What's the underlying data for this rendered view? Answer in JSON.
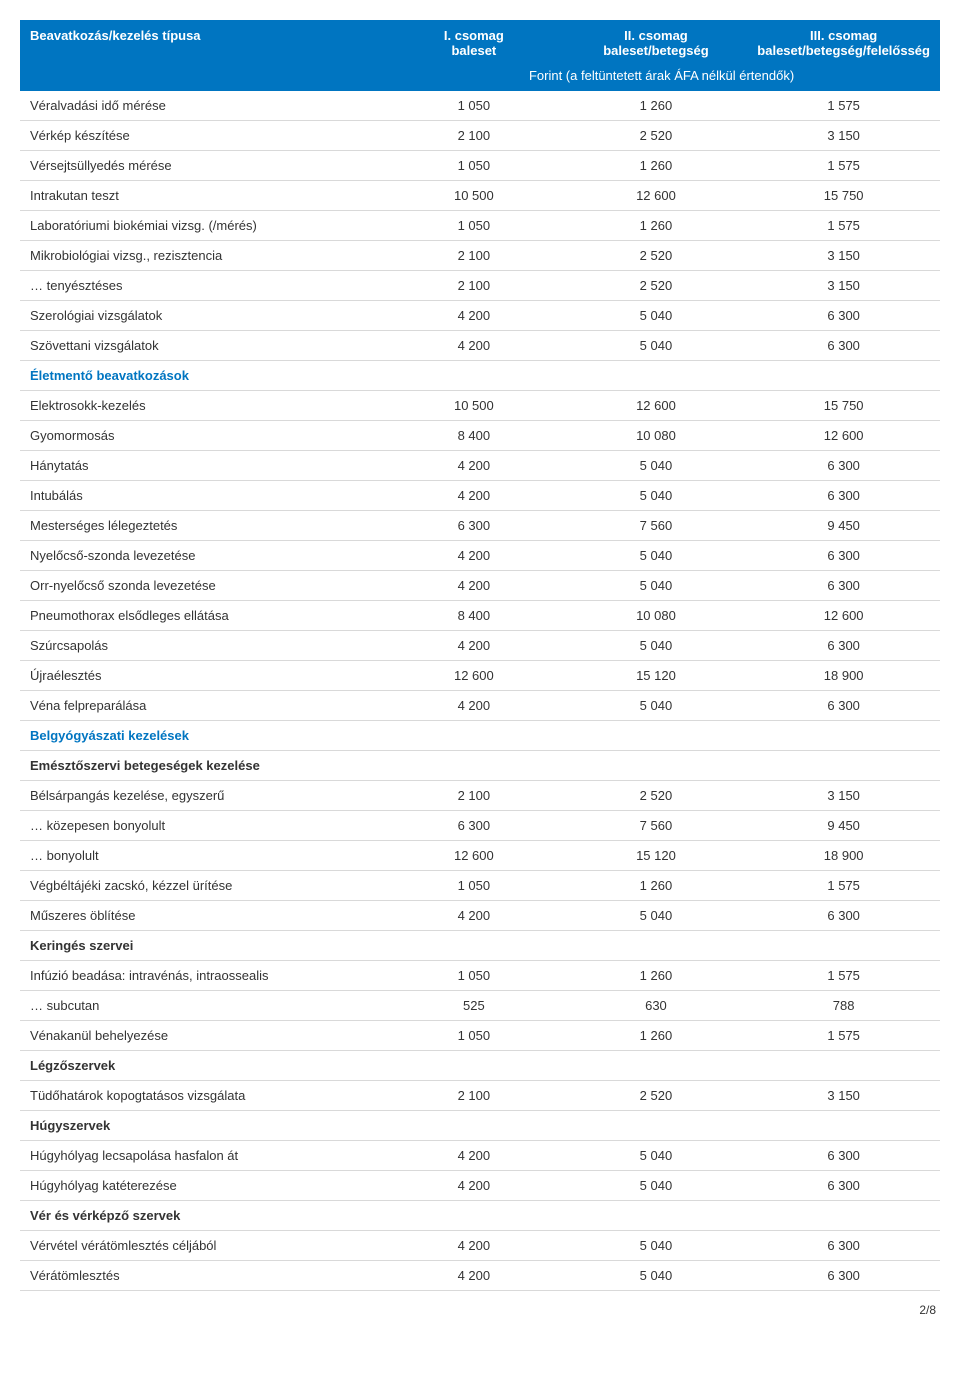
{
  "header": {
    "col0": "Beavatkozás/kezelés típusa",
    "col1_line1": "I. csomag",
    "col1_line2": "baleset",
    "col2_line1": "II. csomag",
    "col2_line2": "baleset/betegség",
    "col3_line1": "III. csomag",
    "col3_line2": "baleset/betegség/felelősség",
    "note": "Forint (a feltüntetett árak ÁFA nélkül értendők)"
  },
  "footer": "2/8",
  "colors": {
    "header_bg": "#0075c1",
    "header_fg": "#ffffff",
    "section_fg": "#0075c1",
    "text": "#333333",
    "border": "#d9d9d9",
    "page_bg": "#ffffff"
  },
  "rows": [
    {
      "type": "data",
      "label": "Véralvadási idő mérése",
      "c1": "1 050",
      "c2": "1 260",
      "c3": "1 575"
    },
    {
      "type": "data",
      "label": "Vérkép készítése",
      "c1": "2 100",
      "c2": "2 520",
      "c3": "3 150"
    },
    {
      "type": "data",
      "label": "Vérsejtsüllyedés mérése",
      "c1": "1 050",
      "c2": "1 260",
      "c3": "1 575"
    },
    {
      "type": "data",
      "label": "Intrakutan teszt",
      "c1": "10 500",
      "c2": "12 600",
      "c3": "15 750"
    },
    {
      "type": "data",
      "label": "Laboratóriumi biokémiai vizsg. (/mérés)",
      "c1": "1 050",
      "c2": "1 260",
      "c3": "1 575"
    },
    {
      "type": "data",
      "label": "Mikrobiológiai vizsg., rezisztencia",
      "c1": "2 100",
      "c2": "2 520",
      "c3": "3 150"
    },
    {
      "type": "data",
      "label": "… tenyésztéses",
      "c1": "2 100",
      "c2": "2 520",
      "c3": "3 150"
    },
    {
      "type": "data",
      "label": "Szerológiai vizsgálatok",
      "c1": "4 200",
      "c2": "5 040",
      "c3": "6 300"
    },
    {
      "type": "data",
      "label": "Szövettani vizsgálatok",
      "c1": "4 200",
      "c2": "5 040",
      "c3": "6 300"
    },
    {
      "type": "section",
      "label": "Életmentő beavatkozások"
    },
    {
      "type": "data",
      "label": "Elektrosokk-kezelés",
      "c1": "10 500",
      "c2": "12 600",
      "c3": "15 750"
    },
    {
      "type": "data",
      "label": "Gyomormosás",
      "c1": "8 400",
      "c2": "10 080",
      "c3": "12 600"
    },
    {
      "type": "data",
      "label": "Hánytatás",
      "c1": "4 200",
      "c2": "5 040",
      "c3": "6 300"
    },
    {
      "type": "data",
      "label": "Intubálás",
      "c1": "4 200",
      "c2": "5 040",
      "c3": "6 300"
    },
    {
      "type": "data",
      "label": "Mesterséges lélegeztetés",
      "c1": "6 300",
      "c2": "7 560",
      "c3": "9 450"
    },
    {
      "type": "data",
      "label": "Nyelőcső-szonda levezetése",
      "c1": "4 200",
      "c2": "5 040",
      "c3": "6 300"
    },
    {
      "type": "data",
      "label": "Orr-nyelőcső szonda levezetése",
      "c1": "4 200",
      "c2": "5 040",
      "c3": "6 300"
    },
    {
      "type": "data",
      "label": "Pneumothorax elsődleges ellátása",
      "c1": "8 400",
      "c2": "10 080",
      "c3": "12 600"
    },
    {
      "type": "data",
      "label": "Szúrcsapolás",
      "c1": "4 200",
      "c2": "5 040",
      "c3": "6 300"
    },
    {
      "type": "data",
      "label": "Újraélesztés",
      "c1": "12 600",
      "c2": "15 120",
      "c3": "18 900"
    },
    {
      "type": "data",
      "label": "Véna felpreparálása",
      "c1": "4 200",
      "c2": "5 040",
      "c3": "6 300"
    },
    {
      "type": "section",
      "label": "Belgyógyászati kezelések"
    },
    {
      "type": "subsection",
      "label": "Emésztőszervi betegeségek kezelése"
    },
    {
      "type": "data",
      "label": "Bélsárpangás kezelése, egyszerű",
      "c1": "2 100",
      "c2": "2 520",
      "c3": "3 150"
    },
    {
      "type": "data",
      "label": "… közepesen bonyolult",
      "c1": "6 300",
      "c2": "7 560",
      "c3": "9 450"
    },
    {
      "type": "data",
      "label": "… bonyolult",
      "c1": "12 600",
      "c2": "15 120",
      "c3": "18 900"
    },
    {
      "type": "data",
      "label": "Végbéltájéki zacskó, kézzel ürítése",
      "c1": "1 050",
      "c2": "1 260",
      "c3": "1 575"
    },
    {
      "type": "data",
      "label": "Műszeres öblítése",
      "c1": "4 200",
      "c2": "5 040",
      "c3": "6 300"
    },
    {
      "type": "subsection",
      "label": "Keringés szervei"
    },
    {
      "type": "data",
      "label": "Infúzió beadása: intravénás, intraossealis",
      "c1": "1 050",
      "c2": "1 260",
      "c3": "1 575"
    },
    {
      "type": "data",
      "label": "… subcutan",
      "c1": "525",
      "c2": "630",
      "c3": "788"
    },
    {
      "type": "data",
      "label": "Vénakanül behelyezése",
      "c1": "1 050",
      "c2": "1 260",
      "c3": "1 575"
    },
    {
      "type": "subsection",
      "label": "Légzőszervek"
    },
    {
      "type": "data",
      "label": "Tüdőhatárok kopogtatásos vizsgálata",
      "c1": "2 100",
      "c2": "2 520",
      "c3": "3 150"
    },
    {
      "type": "subsection",
      "label": "Húgyszervek"
    },
    {
      "type": "data",
      "label": "Húgyhólyag lecsapolása hasfalon át",
      "c1": "4 200",
      "c2": "5 040",
      "c3": "6 300"
    },
    {
      "type": "data",
      "label": "Húgyhólyag katéterezése",
      "c1": "4 200",
      "c2": "5 040",
      "c3": "6 300"
    },
    {
      "type": "subsection",
      "label": "Vér és vérképző szervek"
    },
    {
      "type": "data",
      "label": "Vérvétel vérátömlesztés céljából",
      "c1": "4 200",
      "c2": "5 040",
      "c3": "6 300"
    },
    {
      "type": "data",
      "label": "Vérátömlesztés",
      "c1": "4 200",
      "c2": "5 040",
      "c3": "6 300"
    }
  ]
}
